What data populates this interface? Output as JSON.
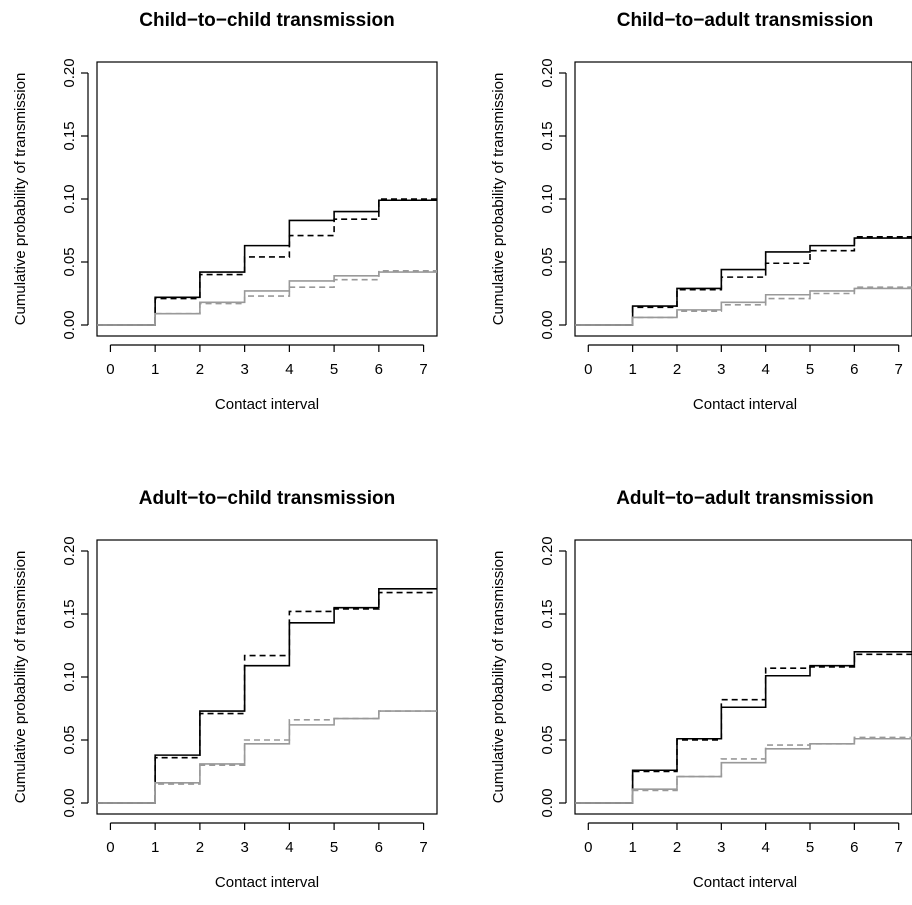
{
  "chart_data": [
    {
      "type": "line",
      "step": true,
      "title": "Child−to−child transmission",
      "xlabel": "Contact interval",
      "ylabel": "Cumulative probability of transmission",
      "x": [
        0,
        1,
        2,
        3,
        4,
        5,
        6,
        7
      ],
      "xlim": [
        -0.3,
        7.3
      ],
      "ylim": [
        0,
        0.2
      ],
      "xticks": [
        "0",
        "1",
        "2",
        "3",
        "4",
        "5",
        "6",
        "7"
      ],
      "yticks": [
        "0.00",
        "0.05",
        "0.10",
        "0.15",
        "0.20"
      ],
      "series": [
        {
          "color": "#000000",
          "dash": false,
          "values": [
            0,
            0.022,
            0.042,
            0.063,
            0.083,
            0.09,
            0.099,
            0.099
          ]
        },
        {
          "color": "#000000",
          "dash": true,
          "values": [
            0,
            0.021,
            0.04,
            0.054,
            0.071,
            0.084,
            0.1,
            0.1
          ]
        },
        {
          "color": "#999999",
          "dash": false,
          "values": [
            0,
            0.009,
            0.018,
            0.027,
            0.035,
            0.039,
            0.042,
            0.042
          ]
        },
        {
          "color": "#999999",
          "dash": true,
          "values": [
            0,
            0.009,
            0.017,
            0.023,
            0.03,
            0.036,
            0.043,
            0.043
          ]
        }
      ]
    },
    {
      "type": "line",
      "step": true,
      "title": "Child−to−adult transmission",
      "xlabel": "Contact interval",
      "ylabel": "Cumulative probability of transmission",
      "x": [
        0,
        1,
        2,
        3,
        4,
        5,
        6,
        7
      ],
      "xlim": [
        -0.3,
        7.3
      ],
      "ylim": [
        0,
        0.2
      ],
      "xticks": [
        "0",
        "1",
        "2",
        "3",
        "4",
        "5",
        "6",
        "7"
      ],
      "yticks": [
        "0.00",
        "0.05",
        "0.10",
        "0.15",
        "0.20"
      ],
      "series": [
        {
          "color": "#000000",
          "dash": false,
          "values": [
            0,
            0.015,
            0.029,
            0.044,
            0.058,
            0.063,
            0.069,
            0.069
          ]
        },
        {
          "color": "#000000",
          "dash": true,
          "values": [
            0,
            0.014,
            0.028,
            0.038,
            0.049,
            0.059,
            0.07,
            0.07
          ]
        },
        {
          "color": "#999999",
          "dash": false,
          "values": [
            0,
            0.006,
            0.012,
            0.018,
            0.024,
            0.027,
            0.029,
            0.029
          ]
        },
        {
          "color": "#999999",
          "dash": true,
          "values": [
            0,
            0.006,
            0.011,
            0.016,
            0.021,
            0.025,
            0.03,
            0.03
          ]
        }
      ]
    },
    {
      "type": "line",
      "step": true,
      "title": "Adult−to−child transmission",
      "xlabel": "Contact interval",
      "ylabel": "Cumulative probability of transmission",
      "x": [
        0,
        1,
        2,
        3,
        4,
        5,
        6,
        7
      ],
      "xlim": [
        -0.3,
        7.3
      ],
      "ylim": [
        0,
        0.2
      ],
      "xticks": [
        "0",
        "1",
        "2",
        "3",
        "4",
        "5",
        "6",
        "7"
      ],
      "yticks": [
        "0.00",
        "0.05",
        "0.10",
        "0.15",
        "0.20"
      ],
      "series": [
        {
          "color": "#000000",
          "dash": false,
          "values": [
            0,
            0.038,
            0.073,
            0.109,
            0.143,
            0.155,
            0.17,
            0.17
          ]
        },
        {
          "color": "#000000",
          "dash": true,
          "values": [
            0,
            0.036,
            0.071,
            0.117,
            0.152,
            0.154,
            0.167,
            0.167
          ]
        },
        {
          "color": "#999999",
          "dash": false,
          "values": [
            0,
            0.016,
            0.031,
            0.047,
            0.062,
            0.067,
            0.073,
            0.073
          ]
        },
        {
          "color": "#999999",
          "dash": true,
          "values": [
            0,
            0.015,
            0.03,
            0.05,
            0.066,
            0.067,
            0.073,
            0.073
          ]
        }
      ]
    },
    {
      "type": "line",
      "step": true,
      "title": "Adult−to−adult transmission",
      "xlabel": "Contact interval",
      "ylabel": "Cumulative probability of transmission",
      "x": [
        0,
        1,
        2,
        3,
        4,
        5,
        6,
        7
      ],
      "xlim": [
        -0.3,
        7.3
      ],
      "ylim": [
        0,
        0.2
      ],
      "xticks": [
        "0",
        "1",
        "2",
        "3",
        "4",
        "5",
        "6",
        "7"
      ],
      "yticks": [
        "0.00",
        "0.05",
        "0.10",
        "0.15",
        "0.20"
      ],
      "series": [
        {
          "color": "#000000",
          "dash": false,
          "values": [
            0,
            0.026,
            0.051,
            0.076,
            0.101,
            0.109,
            0.12,
            0.12
          ]
        },
        {
          "color": "#000000",
          "dash": true,
          "values": [
            0,
            0.025,
            0.05,
            0.082,
            0.107,
            0.108,
            0.118,
            0.118
          ]
        },
        {
          "color": "#999999",
          "dash": false,
          "values": [
            0,
            0.011,
            0.021,
            0.032,
            0.043,
            0.047,
            0.051,
            0.051
          ]
        },
        {
          "color": "#999999",
          "dash": true,
          "values": [
            0,
            0.01,
            0.021,
            0.035,
            0.046,
            0.047,
            0.052,
            0.052
          ]
        }
      ]
    }
  ]
}
